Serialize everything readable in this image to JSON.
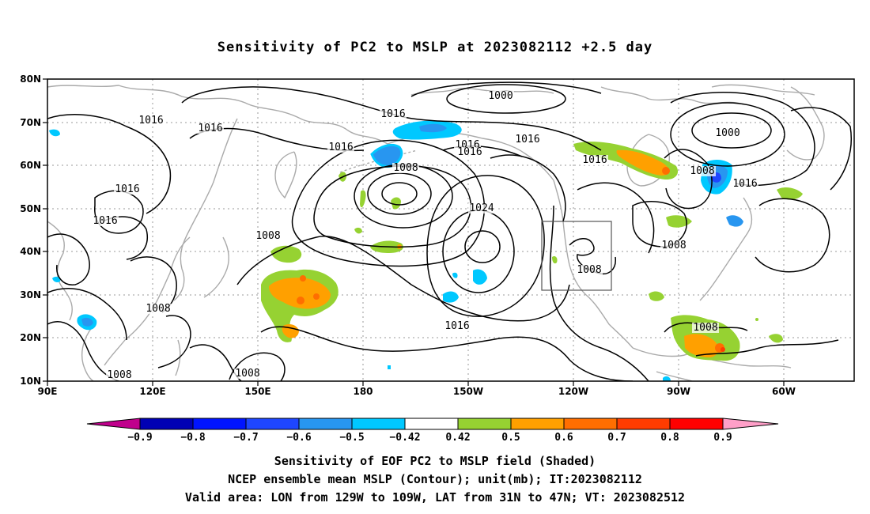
{
  "title": "Sensitivity of PC2 to MSLP at 2023082112 +2.5 day",
  "lat_labels": [
    "80N",
    "70N",
    "60N",
    "50N",
    "40N",
    "30N",
    "20N",
    "10N"
  ],
  "lon_labels": [
    "90E",
    "120E",
    "150E",
    "180",
    "150W",
    "120W",
    "90W",
    "60W"
  ],
  "colorbar": {
    "labels": [
      "-0.9",
      "-0.8",
      "-0.7",
      "-0.6",
      "-0.5",
      "-0.42",
      "0.42",
      "0.5",
      "0.6",
      "0.7",
      "0.8",
      "0.9"
    ],
    "colors": [
      "#c0008c",
      "#0000b4",
      "#0014ff",
      "#1e46ff",
      "#2896f0",
      "#00c8ff",
      "#ffffff",
      "#96d232",
      "#ffa000",
      "#ff6e00",
      "#ff3c00",
      "#ff0000",
      "#ff9fc8"
    ]
  },
  "isobar_labels": [
    {
      "text": "1000"
    },
    {
      "text": "1016"
    },
    {
      "text": "1016"
    },
    {
      "text": "1016"
    },
    {
      "text": "1016"
    },
    {
      "text": "1016"
    },
    {
      "text": "1016"
    },
    {
      "text": "1016"
    },
    {
      "text": "1008"
    },
    {
      "text": "1024"
    },
    {
      "text": "1016"
    },
    {
      "text": "1016"
    },
    {
      "text": "1008"
    },
    {
      "text": "1008"
    },
    {
      "text": "1008"
    },
    {
      "text": "1008"
    },
    {
      "text": "1000"
    },
    {
      "text": "1008"
    },
    {
      "text": "1016"
    },
    {
      "text": "1008"
    },
    {
      "text": "1008"
    },
    {
      "text": "1008"
    },
    {
      "text": "1016"
    },
    {
      "text": "1016"
    }
  ],
  "footer": {
    "line1": "Sensitivity of EOF PC2 to MSLP field (Shaded)",
    "line2": "NCEP ensemble mean MSLP (Contour); unit(mb); IT:2023082112",
    "line3": "Valid area: LON from 129W to 109W, LAT from 31N to 47N; VT: 2023082512"
  }
}
